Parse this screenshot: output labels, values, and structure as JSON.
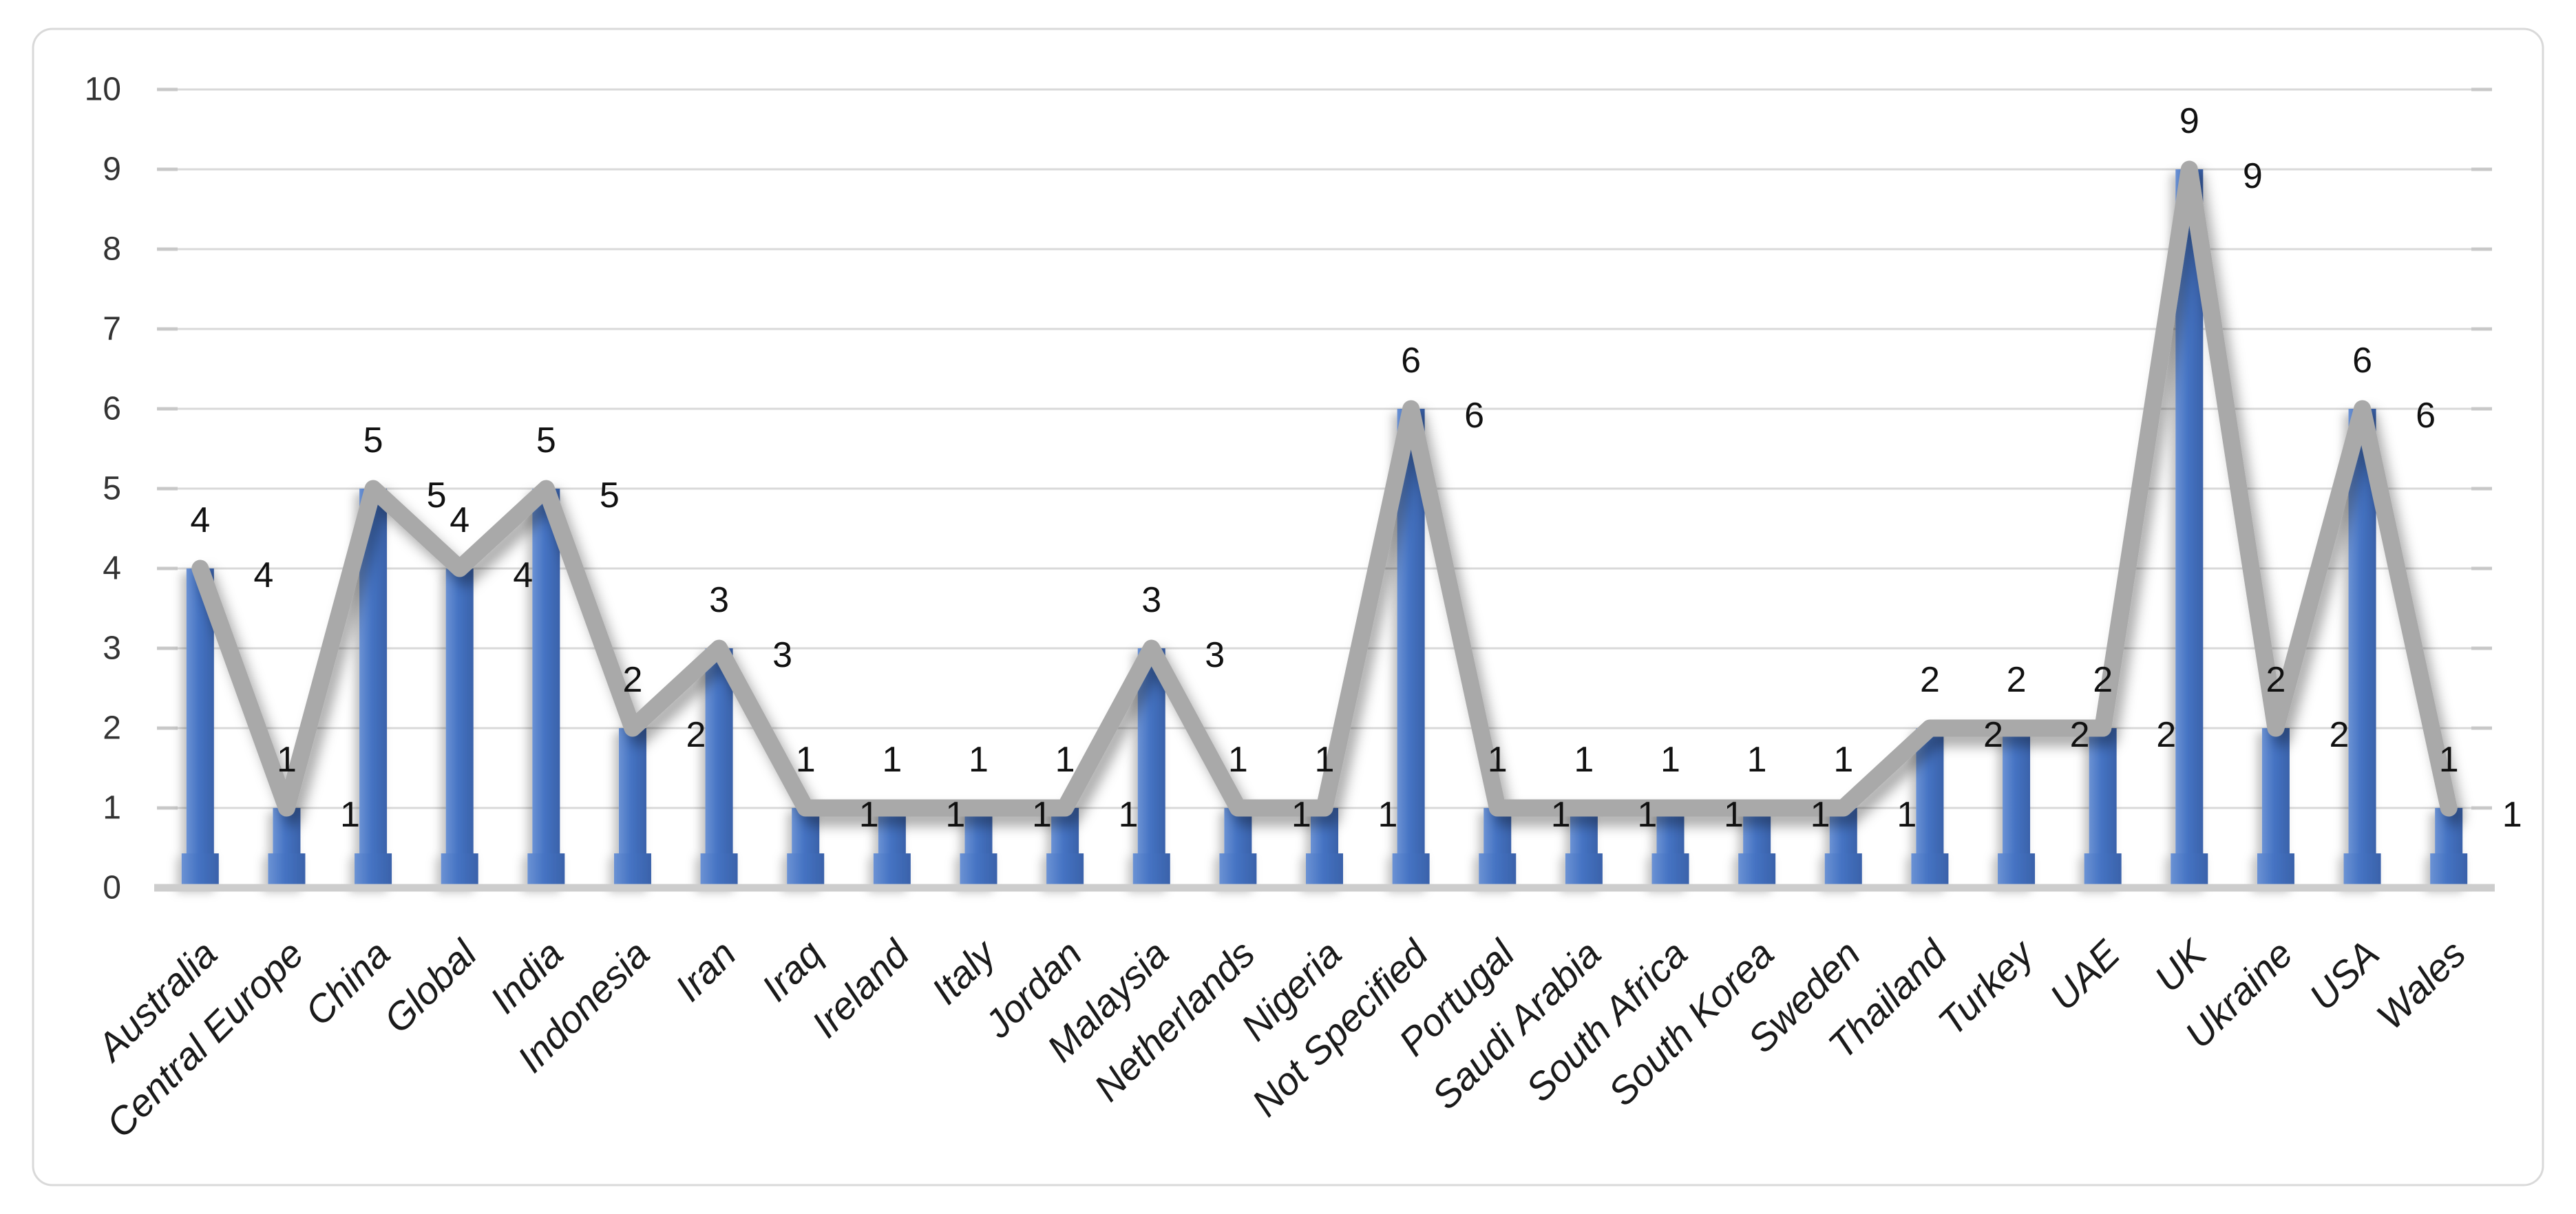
{
  "chart_data": {
    "type": "combo-bar-line",
    "title": "",
    "categories": [
      "Australia",
      "Central Europe",
      "China",
      "Global",
      "India",
      "Indonesia",
      "Iran",
      "Iraq",
      "Ireland",
      "Italy",
      "Jordan",
      "Malaysia",
      "Netherlands",
      "Nigeria",
      "Not Specified",
      "Portugal",
      "Saudi Arabia",
      "South Africa",
      "South Korea",
      "Sweden",
      "Thailand",
      "Turkey",
      "UAE",
      "UK",
      "Ukraine",
      "USA",
      "Wales"
    ],
    "series": [
      {
        "name": "bar-series",
        "type": "bar",
        "values": [
          4,
          1,
          5,
          4,
          5,
          2,
          3,
          1,
          1,
          1,
          1,
          3,
          1,
          1,
          6,
          1,
          1,
          1,
          1,
          1,
          2,
          2,
          2,
          9,
          2,
          6,
          1
        ],
        "color": "#4472C4",
        "label_position": "outside-end"
      },
      {
        "name": "line-series",
        "type": "line",
        "values": [
          4,
          1,
          5,
          4,
          5,
          2,
          3,
          1,
          1,
          1,
          1,
          3,
          1,
          1,
          6,
          1,
          1,
          1,
          1,
          1,
          2,
          2,
          2,
          9,
          2,
          6,
          1
        ],
        "color": "#A9A9A9",
        "label_position": "right"
      }
    ],
    "ylim": [
      0,
      10
    ],
    "yticks": [
      0,
      1,
      2,
      3,
      4,
      5,
      6,
      7,
      8,
      9,
      10
    ],
    "grid": true,
    "legend_position": "none",
    "data_labels": true,
    "xlabel": "",
    "ylabel": ""
  },
  "style": {
    "bar_gradient": [
      "#6B92D4",
      "#4573C3",
      "#3A62AA"
    ],
    "line_color": "#A9A9A9",
    "gridline_color": "#D9D9D9",
    "baseline_color": "#CDCDCD",
    "frame_border_color": "#D9D9D9",
    "background": "#FFFFFF",
    "tick_label_color": "#333333",
    "data_label_color": "#111111",
    "x_label_color": "#1A1A1A"
  }
}
